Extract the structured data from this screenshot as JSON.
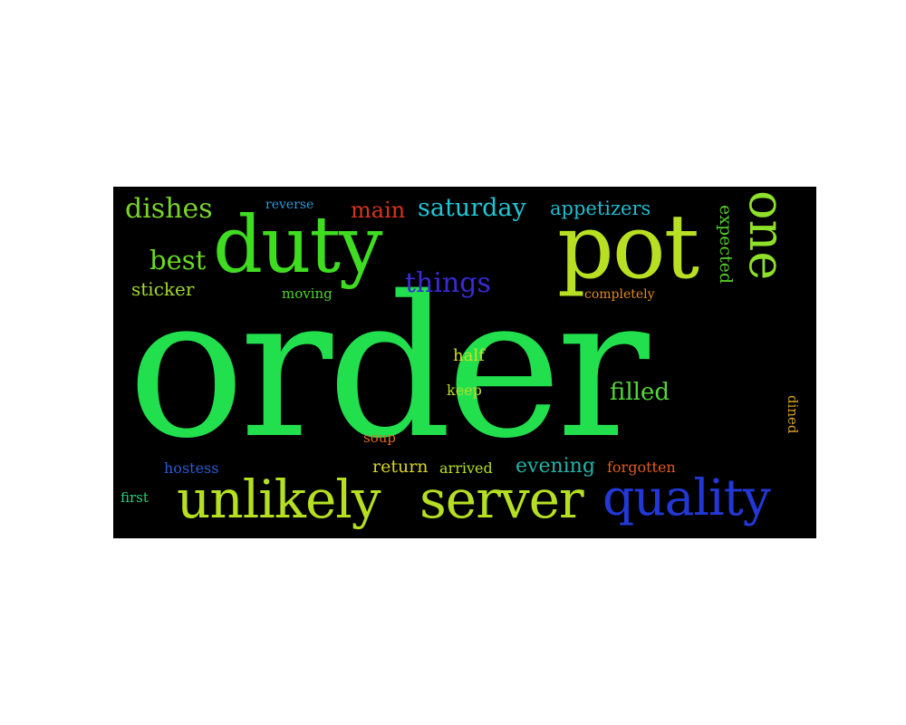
{
  "wordcloud": {
    "background": "#000000",
    "words": [
      {
        "id": "order",
        "text": "order",
        "color": "#22e04d"
      },
      {
        "id": "duty",
        "text": "duty",
        "color": "#3fdc22"
      },
      {
        "id": "pot",
        "text": "pot",
        "color": "#b8df22"
      },
      {
        "id": "one",
        "text": "one",
        "color": "#8ee02a"
      },
      {
        "id": "dishes",
        "text": "dishes",
        "color": "#7bd32a"
      },
      {
        "id": "reverse",
        "text": "reverse",
        "color": "#2a9ad6"
      },
      {
        "id": "main",
        "text": "main",
        "color": "#d7341f"
      },
      {
        "id": "saturday",
        "text": "saturday",
        "color": "#22c6d4"
      },
      {
        "id": "appetizers",
        "text": "appetizers",
        "color": "#22bccd"
      },
      {
        "id": "best",
        "text": "best",
        "color": "#68dc22"
      },
      {
        "id": "sticker",
        "text": "sticker",
        "color": "#a2d830"
      },
      {
        "id": "moving",
        "text": "moving",
        "color": "#52d12a"
      },
      {
        "id": "things",
        "text": "things",
        "color": "#3a2ad6"
      },
      {
        "id": "completely",
        "text": "completely",
        "color": "#df8a22"
      },
      {
        "id": "expected",
        "text": "expected",
        "color": "#55cf2c"
      },
      {
        "id": "half",
        "text": "half",
        "color": "#d2df22"
      },
      {
        "id": "keep",
        "text": "keep",
        "color": "#b6dc2a"
      },
      {
        "id": "filled",
        "text": "filled",
        "color": "#55d63a"
      },
      {
        "id": "dined",
        "text": "dined",
        "color": "#d8a022"
      },
      {
        "id": "soup",
        "text": "soup",
        "color": "#de6a22"
      },
      {
        "id": "hostess",
        "text": "hostess",
        "color": "#2a5ad6"
      },
      {
        "id": "return",
        "text": "return",
        "color": "#d8d322"
      },
      {
        "id": "arrived",
        "text": "arrived",
        "color": "#b2df22"
      },
      {
        "id": "evening",
        "text": "evening",
        "color": "#22b4a8"
      },
      {
        "id": "forgotten",
        "text": "forgotten",
        "color": "#df5a22"
      },
      {
        "id": "first",
        "text": "first",
        "color": "#22d07a"
      },
      {
        "id": "unlikely",
        "text": "unlikely",
        "color": "#b6df22"
      },
      {
        "id": "server",
        "text": "server",
        "color": "#b6df22"
      },
      {
        "id": "quality",
        "text": "quality",
        "color": "#2238d6"
      }
    ]
  }
}
